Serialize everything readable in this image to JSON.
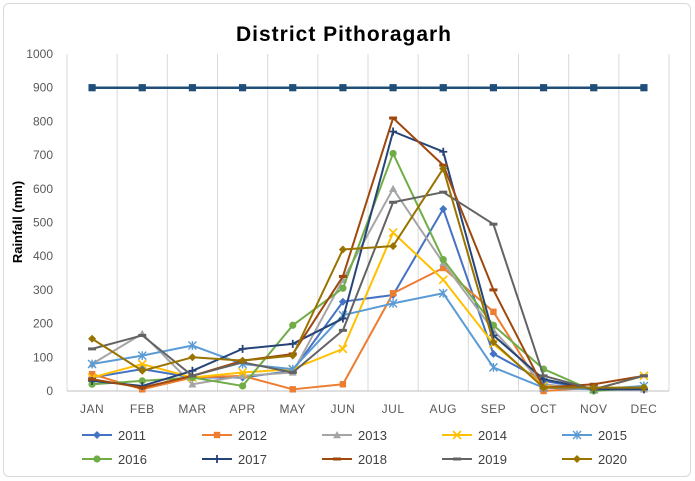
{
  "chart_data": {
    "type": "line",
    "title": "District Pithoragarh",
    "xlabel": "",
    "ylabel": "Rainfall (mm)",
    "ylim": [
      0,
      1000
    ],
    "yticks": [
      0,
      100,
      200,
      300,
      400,
      500,
      600,
      700,
      800,
      900,
      1000
    ],
    "grid": "vertical",
    "legend_position": "bottom",
    "categories": [
      "JAN",
      "FEB",
      "MAR",
      "APR",
      "MAY",
      "JUN",
      "JUL",
      "AUG",
      "SEP",
      "OCT",
      "NOV",
      "DEC"
    ],
    "series": [
      {
        "name": "2011",
        "color": "#4472c4",
        "marker": "diamond",
        "values": [
          40,
          65,
          40,
          40,
          60,
          265,
          285,
          540,
          110,
          30,
          5,
          5
        ]
      },
      {
        "name": "2012",
        "color": "#ed7d31",
        "marker": "square",
        "values": [
          50,
          5,
          40,
          45,
          5,
          20,
          290,
          365,
          235,
          0,
          10,
          5
        ]
      },
      {
        "name": "2013",
        "color": "#a5a5a5",
        "marker": "triangle",
        "values": [
          80,
          170,
          20,
          45,
          55,
          330,
          600,
          380,
          180,
          20,
          5,
          5
        ]
      },
      {
        "name": "2014",
        "color": "#ffc000",
        "marker": "x",
        "values": [
          40,
          80,
          40,
          55,
          65,
          125,
          470,
          330,
          140,
          15,
          5,
          45
        ]
      },
      {
        "name": "2015",
        "color": "#5b9bd5",
        "marker": "star",
        "values": [
          80,
          105,
          135,
          80,
          65,
          225,
          260,
          290,
          70,
          10,
          5,
          15
        ]
      },
      {
        "name": "2016",
        "color": "#70ad47",
        "marker": "circle",
        "values": [
          20,
          30,
          40,
          15,
          195,
          305,
          705,
          390,
          195,
          65,
          0,
          10
        ]
      },
      {
        "name": "2017",
        "color": "#264478",
        "marker": "plus",
        "values": [
          30,
          15,
          60,
          125,
          140,
          215,
          770,
          710,
          165,
          35,
          5,
          5
        ]
      },
      {
        "name": "2018",
        "color": "#9e480e",
        "marker": "dash",
        "values": [
          35,
          10,
          45,
          90,
          110,
          340,
          810,
          670,
          300,
          10,
          20,
          45
        ]
      },
      {
        "name": "2019",
        "color": "#636363",
        "marker": "dash",
        "values": [
          125,
          165,
          45,
          85,
          55,
          180,
          560,
          590,
          495,
          45,
          5,
          45
        ]
      },
      {
        "name": "2020",
        "color": "#997300",
        "marker": "diamond",
        "values": [
          155,
          60,
          100,
          90,
          105,
          420,
          430,
          660,
          145,
          10,
          10,
          10
        ]
      },
      {
        "name": "",
        "color": "#1f4e79",
        "marker": "square",
        "values": [
          900,
          900,
          900,
          900,
          900,
          900,
          900,
          900,
          900,
          900,
          900,
          900
        ]
      }
    ]
  }
}
